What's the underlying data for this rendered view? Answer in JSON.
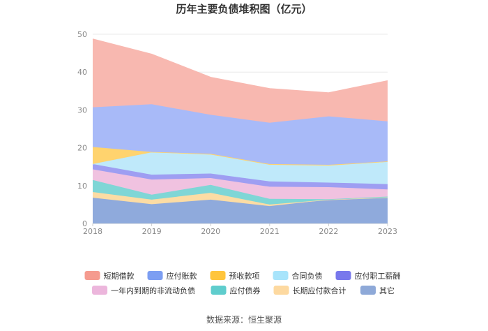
{
  "chart_data": {
    "type": "area",
    "stacked": true,
    "title": "历年主要负债堆积图（亿元）",
    "xlabel": "",
    "ylabel": "",
    "categories": [
      "2018",
      "2019",
      "2020",
      "2021",
      "2022",
      "2023"
    ],
    "ylim": [
      0,
      50
    ],
    "yticks": [
      0,
      10,
      20,
      30,
      40,
      50
    ],
    "grid": true,
    "legend_position": "bottom",
    "series": [
      {
        "name": "其它",
        "color": "#8faadc",
        "values": [
          6.8,
          5.1,
          6.3,
          4.6,
          6.3,
          6.9
        ]
      },
      {
        "name": "长期应付款合计",
        "color": "#fcdca4",
        "values": [
          1.5,
          1.2,
          1.8,
          0.4,
          0.0,
          0.0
        ]
      },
      {
        "name": "应付债券",
        "color": "#7fd6d6",
        "values": [
          3.2,
          1.3,
          2.1,
          1.5,
          0.1,
          0.2
        ]
      },
      {
        "name": "一年内到期的非流动负债",
        "color": "#f0c2e0",
        "values": [
          2.8,
          4.0,
          1.8,
          3.2,
          3.2,
          1.9
        ]
      },
      {
        "name": "应付职工薪酬",
        "color": "#9e9ef2",
        "values": [
          1.4,
          1.3,
          1.2,
          1.4,
          1.2,
          1.4
        ]
      },
      {
        "name": "合同负债",
        "color": "#bfe9fa",
        "values": [
          0.0,
          5.9,
          5.0,
          4.4,
          4.5,
          5.9
        ]
      },
      {
        "name": "预收款项",
        "color": "#ffd36e",
        "values": [
          4.5,
          0.1,
          0.2,
          0.2,
          0.2,
          0.1
        ]
      },
      {
        "name": "应付账款",
        "color": "#a8baf8",
        "values": [
          10.5,
          12.6,
          10.3,
          10.9,
          12.8,
          10.6
        ]
      },
      {
        "name": "短期借款",
        "color": "#f8b8b0",
        "values": [
          18.0,
          13.2,
          9.9,
          9.0,
          6.2,
          10.7
        ]
      }
    ],
    "legend_order": [
      "短期借款",
      "应付账款",
      "预收款项",
      "合同负债",
      "应付职工薪酬",
      "一年内到期的非流动负债",
      "应付债券",
      "长期应付款合计",
      "其它"
    ]
  },
  "legend_colors": {
    "短期借款": "#f59b8f",
    "应付账款": "#7c9ef2",
    "预收款项": "#ffc53d",
    "合同负债": "#a8e4fb",
    "应付职工薪酬": "#7878ec",
    "一年内到期的非流动负债": "#ecb6dc",
    "应付债券": "#5fcdcd",
    "长期应付款合计": "#fdd9a0",
    "其它": "#8ea9d8"
  },
  "source": "数据来源：恒生聚源"
}
